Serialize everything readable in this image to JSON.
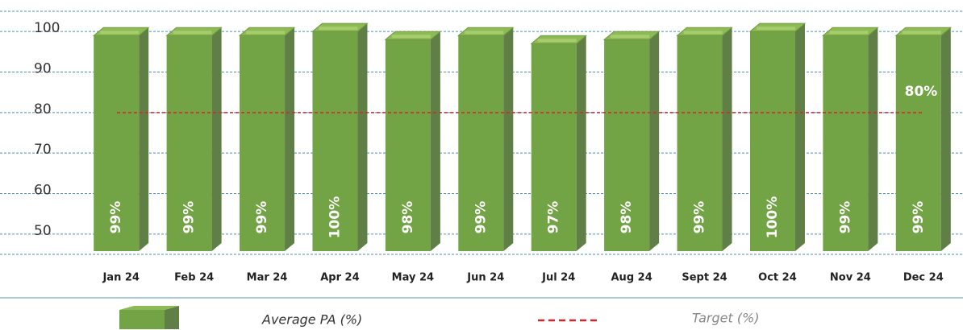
{
  "chart_data": {
    "type": "bar3d",
    "categories": [
      "Jan 24",
      "Feb 24",
      "Mar 24",
      "Apr 24",
      "May 24",
      "Jun 24",
      "Jul 24",
      "Aug 24",
      "Sept 24",
      "Oct 24",
      "Nov 24",
      "Dec 24"
    ],
    "series": [
      {
        "name": "Average PA (%)",
        "color": "#72a345",
        "side_color": "#5f7f47",
        "top_color": "#8dba55",
        "values": [
          99,
          99,
          99,
          100,
          98,
          99,
          97,
          98,
          99,
          100,
          99,
          99
        ],
        "value_labels": [
          "99%",
          "99%",
          "99%",
          "100%",
          "98%",
          "99%",
          "97%",
          "98%",
          "99%",
          "100%",
          "99%",
          "99%"
        ]
      }
    ],
    "target": {
      "name": "Target (%)",
      "value": 80,
      "value_label": "80%",
      "color": "#d9262b"
    },
    "ylim": [
      45,
      105
    ],
    "yticks": [
      50,
      60,
      70,
      80,
      90,
      100
    ],
    "grid": true
  }
}
